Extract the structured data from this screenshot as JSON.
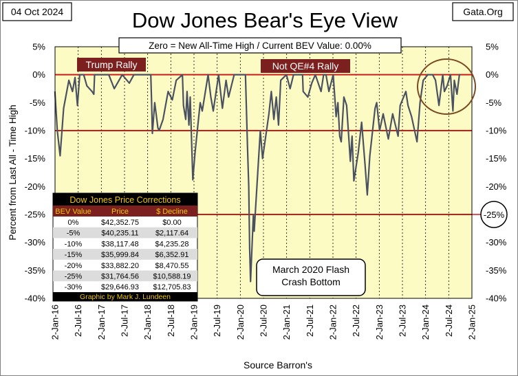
{
  "chart_data": {
    "type": "line",
    "title": "Dow Jones Bear's Eye View",
    "date": "04 Oct 2024",
    "source_site": "Gata.Org",
    "subtitle": "Zero = New All-Time High / Current BEV Value:  0.00%",
    "ylabel": "Percent from  Last  All - Time  High",
    "xlabel": "Source Barron's",
    "ylim": [
      -40,
      5
    ],
    "yticks": [
      "5%",
      "0%",
      "-5%",
      "-10%",
      "-15%",
      "-20%",
      "-25%",
      "-30%",
      "-35%",
      "-40%"
    ],
    "xticks": [
      "2-Jan-16",
      "2-Jul-16",
      "2-Jan-17",
      "2-Jul-17",
      "2-Jan-18",
      "2-Jul-18",
      "2-Jan-19",
      "2-Jul-19",
      "2-Jan-20",
      "2-Jul-20",
      "2-Jan-21",
      "2-Jul-21",
      "2-Jan-22",
      "2-Jul-22",
      "2-Jan-23",
      "2-Jul-23",
      "2-Jan-24",
      "2-Jul-24",
      "2-Jan-25"
    ],
    "reference_lines": [
      0,
      -10,
      -25
    ],
    "right_badge": "-25%",
    "series": [
      {
        "color": "#4a5262",
        "x": [
          "2016-01-01",
          "2016-01-20",
          "2016-02-11",
          "2016-03-10",
          "2016-04-20",
          "2016-05-19",
          "2016-06-08",
          "2016-06-27",
          "2016-07-15",
          "2016-08-15",
          "2016-09-09",
          "2016-10-20",
          "2016-11-03",
          "2016-11-09",
          "2016-12-20",
          "2017-03-01",
          "2017-04-13",
          "2017-06-15",
          "2017-08-10",
          "2017-09-15",
          "2017-11-15",
          "2018-01-26",
          "2018-02-02",
          "2018-02-08",
          "2018-02-26",
          "2018-03-23",
          "2018-04-02",
          "2018-05-03",
          "2018-06-12",
          "2018-07-15",
          "2018-08-15",
          "2018-10-03",
          "2018-10-11",
          "2018-10-29",
          "2018-11-08",
          "2018-11-23",
          "2018-12-03",
          "2018-12-24",
          "2019-01-10",
          "2019-02-20",
          "2019-03-08",
          "2019-04-23",
          "2019-05-15",
          "2019-06-03",
          "2019-07-15",
          "2019-08-14",
          "2019-09-12",
          "2019-10-02",
          "2019-11-15",
          "2020-01-17",
          "2020-02-12",
          "2020-02-28",
          "2020-03-09",
          "2020-03-16",
          "2020-03-23",
          "2020-04-14",
          "2020-04-21",
          "2020-06-08",
          "2020-06-26",
          "2020-08-15",
          "2020-09-03",
          "2020-09-23",
          "2020-10-12",
          "2020-10-30",
          "2020-11-16",
          "2020-12-31",
          "2021-01-29",
          "2021-02-25",
          "2021-03-15",
          "2021-05-07",
          "2021-05-12",
          "2021-06-18",
          "2021-07-19",
          "2021-08-16",
          "2021-09-30",
          "2021-10-20",
          "2021-11-08",
          "2021-12-01",
          "2022-01-04",
          "2022-01-27",
          "2022-02-10",
          "2022-02-24",
          "2022-03-08",
          "2022-03-29",
          "2022-04-20",
          "2022-05-19",
          "2022-06-02",
          "2022-06-16",
          "2022-07-20",
          "2022-08-16",
          "2022-09-12",
          "2022-09-30",
          "2022-10-20",
          "2022-11-30",
          "2022-12-13",
          "2023-01-05",
          "2023-02-02",
          "2023-03-15",
          "2023-04-18",
          "2023-05-31",
          "2023-06-16",
          "2023-07-31",
          "2023-08-17",
          "2023-09-14",
          "2023-10-27",
          "2023-11-20",
          "2023-12-15",
          "2024-01-20",
          "2024-02-28",
          "2024-03-21",
          "2024-04-17",
          "2024-05-17",
          "2024-05-30",
          "2024-06-20",
          "2024-07-17",
          "2024-08-05",
          "2024-08-16",
          "2024-09-06",
          "2024-09-25",
          "2024-10-04"
        ],
        "y": [
          -3.0,
          -10.0,
          -14.5,
          -6.0,
          -1.0,
          -3.0,
          -0.5,
          -5.5,
          0.0,
          0.0,
          -2.0,
          -3.0,
          -3.5,
          0.0,
          0.0,
          0.0,
          -2.5,
          0.0,
          -1.5,
          0.0,
          0.0,
          0.0,
          -5.0,
          -10.5,
          -5.0,
          -9.5,
          -10.0,
          -8.0,
          -3.0,
          -4.5,
          -1.0,
          0.0,
          -5.5,
          -8.0,
          -3.0,
          -9.0,
          -4.0,
          -18.8,
          -14.0,
          -5.0,
          -6.5,
          0.0,
          -4.0,
          -6.5,
          0.0,
          -6.0,
          -1.0,
          -4.0,
          0.0,
          0.0,
          0.0,
          -13.0,
          -20.0,
          -31.0,
          -37.0,
          -25.0,
          -28.0,
          -10.0,
          -15.0,
          -7.0,
          -3.0,
          -8.0,
          -4.0,
          -9.0,
          -1.0,
          0.0,
          -2.5,
          0.0,
          0.0,
          0.0,
          -3.0,
          -4.0,
          -1.5,
          0.0,
          -3.0,
          0.0,
          0.0,
          -3.0,
          0.0,
          -7.5,
          -5.0,
          -11.0,
          -12.0,
          -4.0,
          -5.5,
          -15.5,
          -11.0,
          -19.0,
          -14.0,
          -8.5,
          -16.0,
          -21.5,
          -14.5,
          -6.0,
          -5.0,
          -10.0,
          -7.0,
          -11.5,
          -7.0,
          -11.0,
          -5.5,
          -3.0,
          -5.5,
          -7.5,
          -12.0,
          -5.0,
          -1.0,
          0.0,
          0.0,
          -1.0,
          -5.5,
          0.0,
          -3.0,
          -2.0,
          0.0,
          -6.5,
          -1.0,
          -3.5,
          0.0,
          0.0
        ]
      }
    ],
    "annotations": [
      {
        "text": "Trump Rally"
      },
      {
        "text": "Not QE#4 Rally"
      },
      {
        "text": "March 2020 Flash\nCrash Bottom"
      }
    ],
    "table": {
      "title": "Dow Jones Price Corrections",
      "headers": [
        "BEV Value",
        "Price",
        "$ Decline"
      ],
      "rows": [
        [
          "0%",
          "$42,352.75",
          "$0.00"
        ],
        [
          "-5%",
          "$40,235.11",
          "$2,117.64"
        ],
        [
          "-10%",
          "$38,117.48",
          "$4,235.28"
        ],
        [
          "-15%",
          "$35,999.84",
          "$6,352.91"
        ],
        [
          "-20%",
          "$33,882.20",
          "$8,470.55"
        ],
        [
          "-25%",
          "$31,764.56",
          "$10,588.19"
        ],
        [
          "-30%",
          "$29,646.93",
          "$12,705.83"
        ]
      ],
      "footer": "Graphic by Mark J. Lundeen"
    }
  }
}
